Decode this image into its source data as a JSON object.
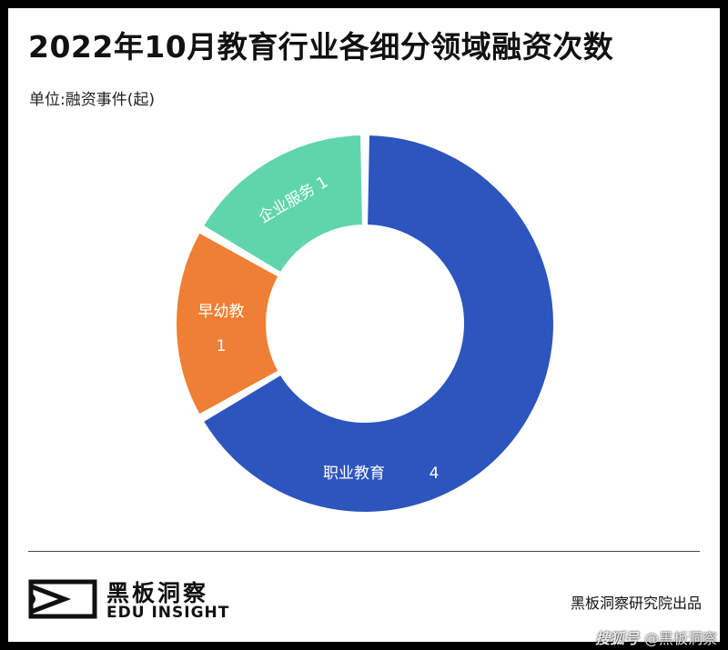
{
  "header": {
    "title": "2022年10月教育行业各细分领域融资次数",
    "unit": "单位:融资事件(起)"
  },
  "chart_data": {
    "type": "pie",
    "variant": "donut",
    "title": "2022年10月教育行业各细分领域融资次数",
    "unit": "单位:融资事件(起)",
    "slices": [
      {
        "label": "职业教育",
        "value": 4,
        "color": "#2D55BE"
      },
      {
        "label": "早幼教",
        "value": 1,
        "color": "#EF7F34"
      },
      {
        "label": "企业服务",
        "value": 1,
        "color": "#5FD6AA"
      }
    ]
  },
  "footer": {
    "brand_cn": "黑板洞察",
    "brand_en": "EDU INSIGHT",
    "source": "黑板洞察研究院出品",
    "logo_icon": "eye-play-icon"
  },
  "watermark": {
    "logo": "搜狐号",
    "text": "@黑板洞察"
  }
}
